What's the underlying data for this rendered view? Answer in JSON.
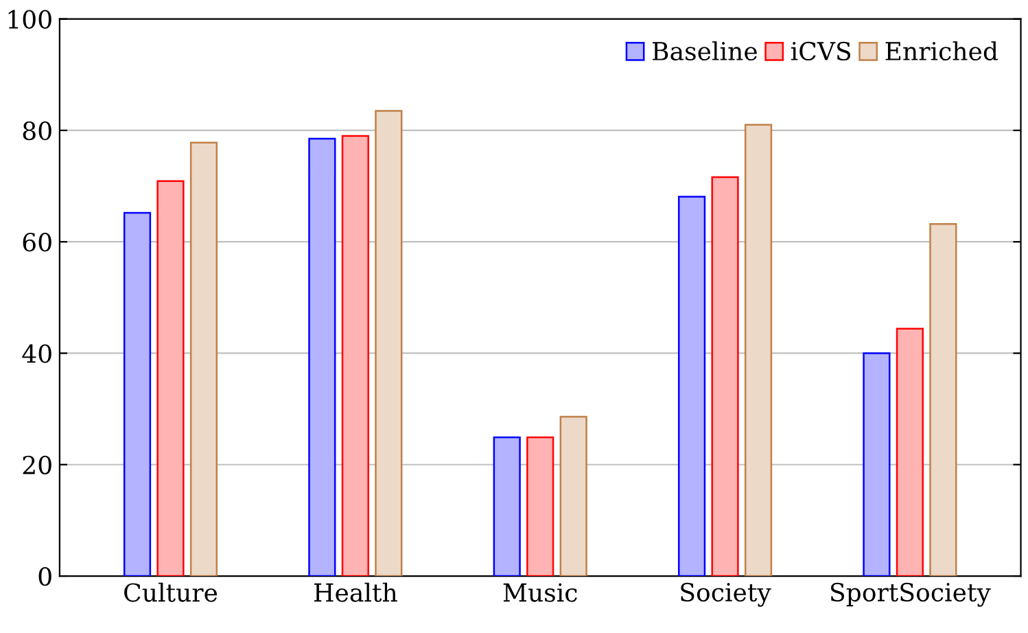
{
  "chart_data": {
    "type": "bar",
    "categories": [
      "Culture",
      "Health",
      "Music",
      "Society",
      "SportSociety"
    ],
    "series": [
      {
        "name": "Baseline",
        "color": "#b3b3ff",
        "values": [
          65.2,
          78.5,
          24.9,
          68.1,
          40.0
        ]
      },
      {
        "name": "iCVS",
        "color": "#ffb3b3",
        "values": [
          70.9,
          79.0,
          24.9,
          71.6,
          44.4
        ]
      },
      {
        "name": "Enriched",
        "color": "#ecd9c8",
        "values": [
          77.8,
          83.5,
          28.6,
          81.0,
          63.2
        ]
      }
    ],
    "ylim": [
      0,
      100
    ],
    "yticks": [
      0,
      20,
      40,
      60,
      80,
      100
    ],
    "grid": "y",
    "legend": "top right"
  }
}
